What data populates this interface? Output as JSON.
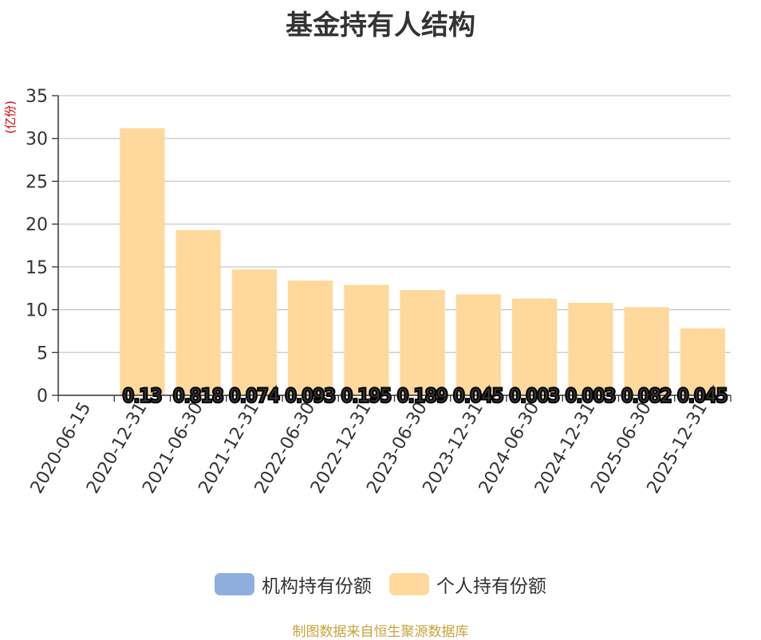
{
  "chart_data": {
    "type": "bar",
    "title": "基金持有人结构",
    "ylabel": "(亿份)",
    "ylim": [
      0,
      35
    ],
    "yticks": [
      0,
      5,
      10,
      15,
      20,
      25,
      30,
      35
    ],
    "grid": true,
    "legend_position": "bottom",
    "categories": [
      "2020-06-15",
      "2020-12-31",
      "2021-06-30",
      "2021-12-31",
      "2022-06-30",
      "2022-12-31",
      "2023-06-30",
      "2023-12-31",
      "2024-06-30",
      "2024-12-31",
      "2025-06-30",
      "2025-12-31"
    ],
    "series": [
      {
        "name": "机构持有份额",
        "color": "#8eaede",
        "values": [
          null,
          0.13,
          0.818,
          0.074,
          0.093,
          0.195,
          0.189,
          0.045,
          0.003,
          0.003,
          0.082,
          0.045
        ],
        "labels": [
          "",
          "0.13",
          "0.818",
          "0.074",
          "0.093",
          "0.195",
          "0.189",
          "0.045",
          "0.003",
          "0.003",
          "0.082",
          "0.045"
        ]
      },
      {
        "name": "个人持有份额",
        "color": "#fed99b",
        "values": [
          null,
          31.2,
          19.3,
          14.7,
          13.4,
          12.9,
          12.3,
          11.8,
          11.3,
          10.8,
          10.3,
          7.8
        ]
      }
    ]
  },
  "source_note": "制图数据来自恒生聚源数据库"
}
